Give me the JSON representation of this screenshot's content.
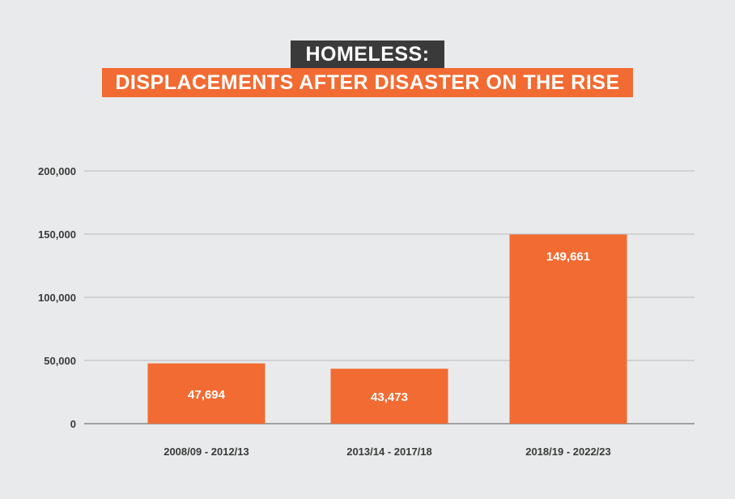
{
  "title": {
    "line1": "HOMELESS:",
    "line2": "DISPLACEMENTS AFTER DISASTER ON THE RISE"
  },
  "colors": {
    "background": "#e9eaeb",
    "bar": "#f26b32",
    "title_dark": "#3a3a3a",
    "grid": "#b9babb"
  },
  "chart_data": {
    "type": "bar",
    "categories": [
      "2008/09 - 2012/13",
      "2013/14 - 2017/18",
      "2018/19 - 2022/23"
    ],
    "values": [
      47694,
      43473,
      149661
    ],
    "data_labels": [
      "47,694",
      "43,473",
      "149,661"
    ],
    "yticks": [
      0,
      50000,
      100000,
      150000,
      200000
    ],
    "ytick_labels": [
      "0",
      "50,000",
      "100,000",
      "150,000",
      "200,000"
    ],
    "ylim": [
      0,
      200000
    ],
    "grid": true,
    "legend": "none"
  }
}
